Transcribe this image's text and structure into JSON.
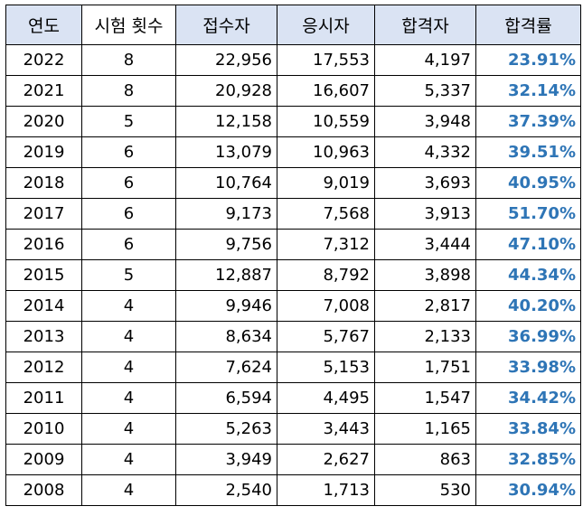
{
  "headers": [
    "연도",
    "시험 횟수",
    "접수자",
    "응시자",
    "합격자",
    "합격률"
  ],
  "accent": "#2e75b6",
  "header_bg": "#dae3f3",
  "rows": [
    {
      "year": "2022",
      "count": "8",
      "applied": "22,956",
      "tested": "17,553",
      "passed": "4,197",
      "rate": "23.91%"
    },
    {
      "year": "2021",
      "count": "8",
      "applied": "20,928",
      "tested": "16,607",
      "passed": "5,337",
      "rate": "32.14%"
    },
    {
      "year": "2020",
      "count": "5",
      "applied": "12,158",
      "tested": "10,559",
      "passed": "3,948",
      "rate": "37.39%"
    },
    {
      "year": "2019",
      "count": "6",
      "applied": "13,079",
      "tested": "10,963",
      "passed": "4,332",
      "rate": "39.51%"
    },
    {
      "year": "2018",
      "count": "6",
      "applied": "10,764",
      "tested": "9,019",
      "passed": "3,693",
      "rate": "40.95%"
    },
    {
      "year": "2017",
      "count": "6",
      "applied": "9,173",
      "tested": "7,568",
      "passed": "3,913",
      "rate": "51.70%"
    },
    {
      "year": "2016",
      "count": "6",
      "applied": "9,756",
      "tested": "7,312",
      "passed": "3,444",
      "rate": "47.10%"
    },
    {
      "year": "2015",
      "count": "5",
      "applied": "12,887",
      "tested": "8,792",
      "passed": "3,898",
      "rate": "44.34%"
    },
    {
      "year": "2014",
      "count": "4",
      "applied": "9,946",
      "tested": "7,008",
      "passed": "2,817",
      "rate": "40.20%"
    },
    {
      "year": "2013",
      "count": "4",
      "applied": "8,634",
      "tested": "5,767",
      "passed": "2,133",
      "rate": "36.99%"
    },
    {
      "year": "2012",
      "count": "4",
      "applied": "7,624",
      "tested": "5,153",
      "passed": "1,751",
      "rate": "33.98%"
    },
    {
      "year": "2011",
      "count": "4",
      "applied": "6,594",
      "tested": "4,495",
      "passed": "1,547",
      "rate": "34.42%"
    },
    {
      "year": "2010",
      "count": "4",
      "applied": "5,263",
      "tested": "3,443",
      "passed": "1,165",
      "rate": "33.84%"
    },
    {
      "year": "2009",
      "count": "4",
      "applied": "3,949",
      "tested": "2,627",
      "passed": "863",
      "rate": "32.85%"
    },
    {
      "year": "2008",
      "count": "4",
      "applied": "2,540",
      "tested": "1,713",
      "passed": "530",
      "rate": "30.94%"
    }
  ]
}
